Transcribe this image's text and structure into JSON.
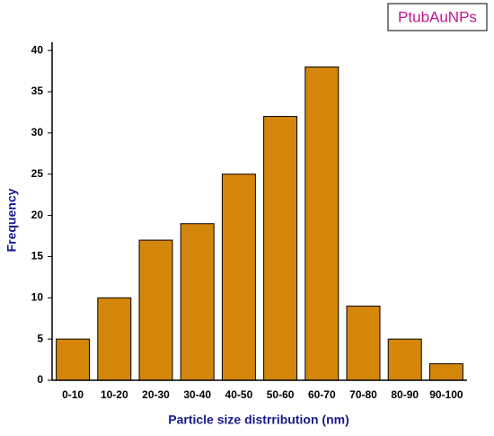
{
  "chart_data": {
    "type": "bar",
    "x_label": "Particle size distrribution (nm)",
    "y_label": "Frequency",
    "categories": [
      "0-10",
      "10-20",
      "20-30",
      "30-40",
      "40-50",
      "50-60",
      "60-70",
      "70-80",
      "80-90",
      "90-100"
    ],
    "series": [
      {
        "name": "PtubAuNPs",
        "color": "#d4860b",
        "values": [
          5,
          10,
          17,
          19,
          25,
          32,
          38,
          9,
          5,
          2
        ]
      }
    ],
    "ylim": [
      0,
      41
    ],
    "yticks": [
      0,
      5,
      10,
      15,
      20,
      25,
      30,
      35,
      40
    ],
    "legend": "top-right"
  }
}
